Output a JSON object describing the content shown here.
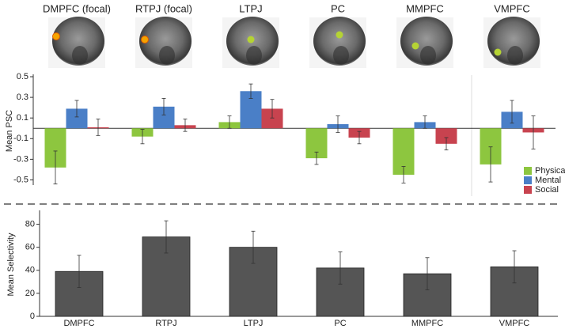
{
  "chart_data": [
    {
      "type": "bar",
      "categories": [
        "DMPFC (focal)",
        "RTPJ (focal)",
        "LTPJ",
        "PC",
        "MMPFC",
        "VMPFC"
      ],
      "ylabel": "Mean PSC",
      "ylim": [
        -0.55,
        0.5
      ],
      "yticks": [
        -0.5,
        -0.3,
        -0.1,
        0.1,
        0.3,
        0.5
      ],
      "legend": "bottom-right",
      "series": [
        {
          "name": "Physical",
          "color": "#8dc63f",
          "values": [
            -0.38,
            -0.08,
            0.06,
            -0.29,
            -0.45,
            -0.35
          ],
          "errors": [
            0.16,
            0.07,
            0.06,
            0.06,
            0.08,
            0.17
          ]
        },
        {
          "name": "Mental",
          "color": "#4a7fc7",
          "values": [
            0.19,
            0.21,
            0.36,
            0.04,
            0.06,
            0.16
          ],
          "errors": [
            0.08,
            0.08,
            0.07,
            0.08,
            0.06,
            0.11
          ]
        },
        {
          "name": "Social",
          "color": "#c8434f",
          "values": [
            0.01,
            0.03,
            0.19,
            -0.09,
            -0.15,
            -0.04
          ],
          "errors": [
            0.08,
            0.06,
            0.09,
            0.06,
            0.06,
            0.16
          ]
        }
      ]
    },
    {
      "type": "bar",
      "categories": [
        "DMPFC",
        "RTPJ",
        "LTPJ",
        "PC",
        "MMPFC",
        "VMPFC"
      ],
      "ylabel": "Mean Selectivity",
      "ylim": [
        0,
        90
      ],
      "yticks": [
        0,
        20,
        40,
        60,
        80
      ],
      "color": "#555555",
      "values": [
        39,
        69,
        60,
        42,
        37,
        43
      ],
      "errors": [
        14,
        14,
        14,
        14,
        14,
        14
      ]
    }
  ]
}
